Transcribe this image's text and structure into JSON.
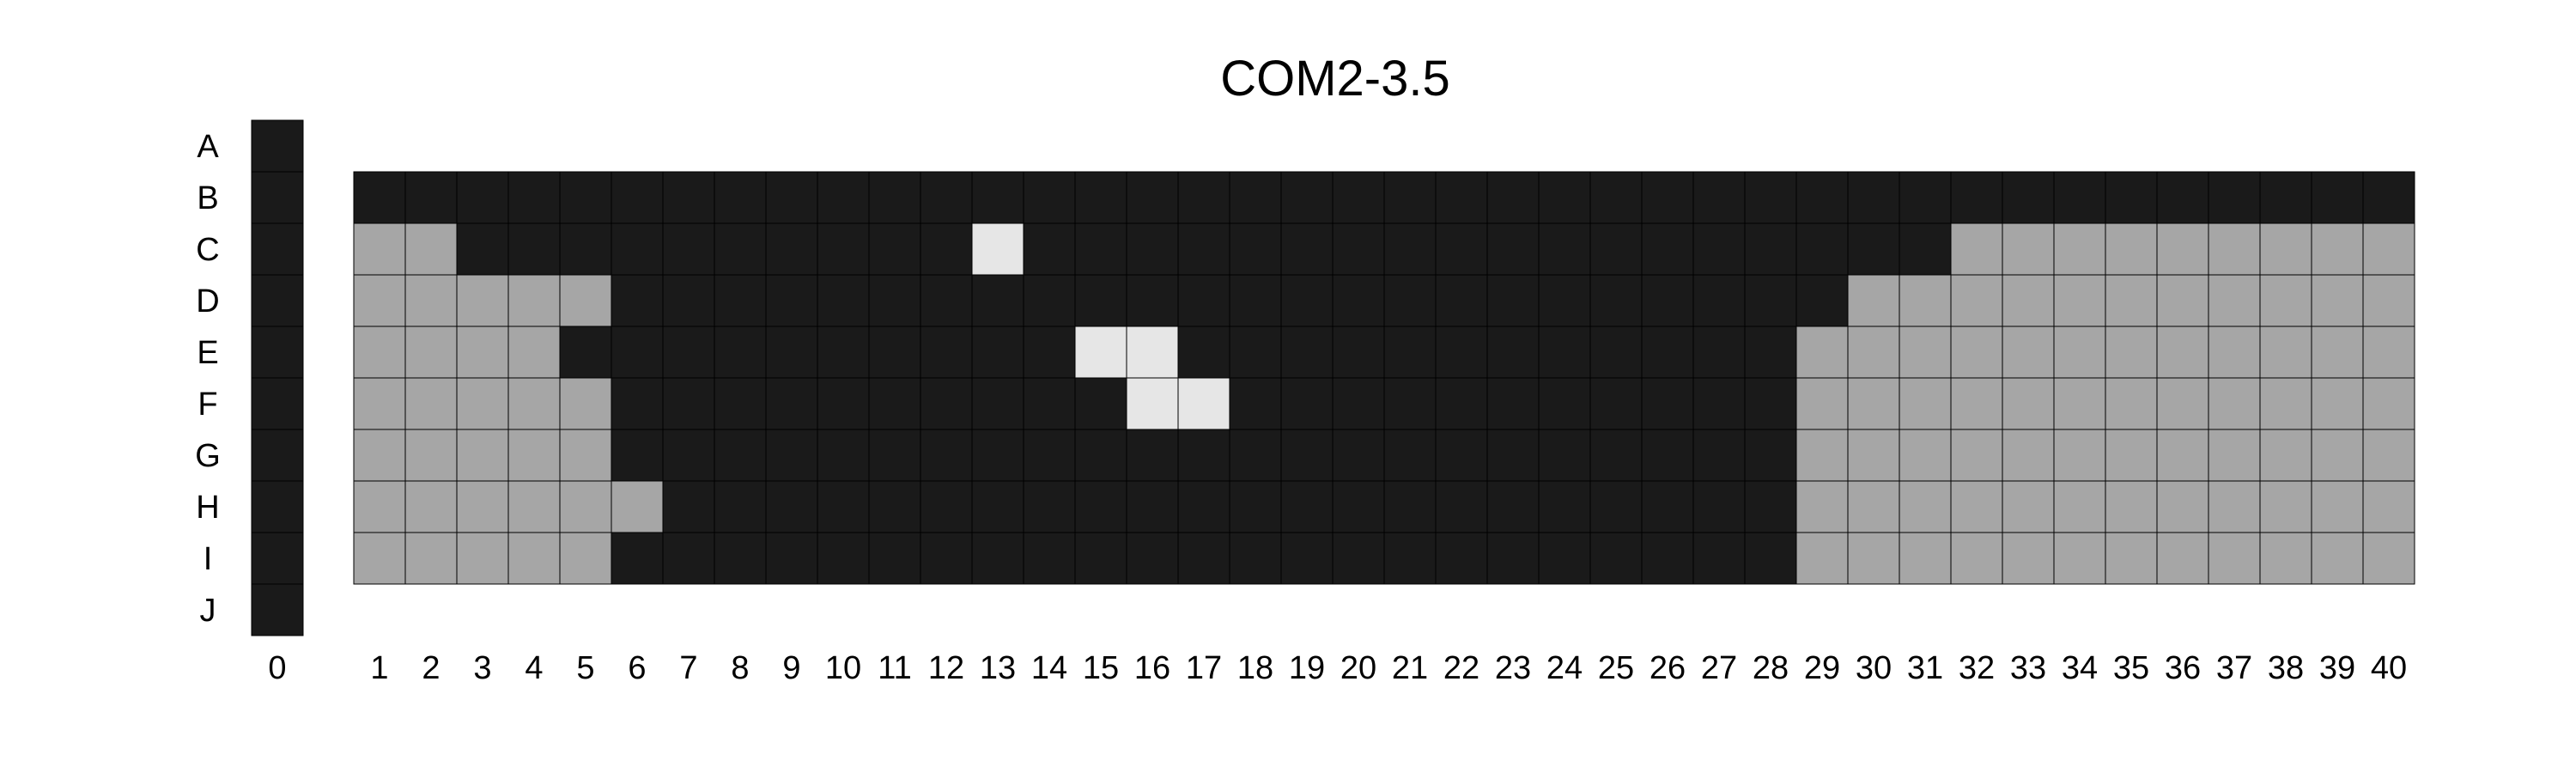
{
  "chart_data": {
    "type": "heatmap",
    "title": "COM2-3.5",
    "row_labels": [
      "A",
      "B",
      "C",
      "D",
      "E",
      "F",
      "G",
      "H",
      "I",
      "J"
    ],
    "column_zero_label": "0",
    "column_labels": [
      "1",
      "2",
      "3",
      "4",
      "5",
      "6",
      "7",
      "8",
      "9",
      "10",
      "11",
      "12",
      "13",
      "14",
      "15",
      "16",
      "17",
      "18",
      "19",
      "20",
      "21",
      "22",
      "23",
      "24",
      "25",
      "26",
      "27",
      "28",
      "29",
      "30",
      "31",
      "32",
      "33",
      "34",
      "35",
      "36",
      "37",
      "38",
      "39",
      "40"
    ],
    "legend": {
      "D": "dark",
      "G": "gray",
      "L": "light"
    },
    "colors": {
      "D": "#1a1a1a",
      "G": "#a6a6a6",
      "L": "#e6e6e6",
      "grid": "#000000"
    },
    "column_zero": [
      "D",
      "D",
      "D",
      "D",
      "D",
      "D",
      "D",
      "D",
      "D",
      "D"
    ],
    "main_grid_rows": [
      "B",
      "C",
      "D",
      "E",
      "F",
      "G",
      "H",
      "I"
    ],
    "main_grid": [
      "DDDDDDDDDDDDDDDDDDDDDDDDDDDDDDDDDDDDDDDD",
      "GGDDDDDDDDDDLDDDDDDDDDDDDDDDDDDGGGGGGGGG",
      "GGGGGDDDDDDDDDDDDDDDDDDDDDDDDGGGGGGGGGGG",
      "GGGGDDDDDDDDDDLLDDDDDDDDDDDDGGGGGGGGGGGG",
      "GGGGGDDDDDDDDDDLLDDDDDDDDDDDGGGGGGGGGGGG",
      "GGGGGDDDDDDDDDDDDDDDDDDDDDDDGGGGGGGGGGGG",
      "GGGGGGDDDDDDDDDDDDDDDDDDDDDDGGGGGGGGGGGG",
      "GGGGGDDDDDDDDDDDDDDDDDDDDDDDGGGGGGGGGGGG"
    ]
  }
}
